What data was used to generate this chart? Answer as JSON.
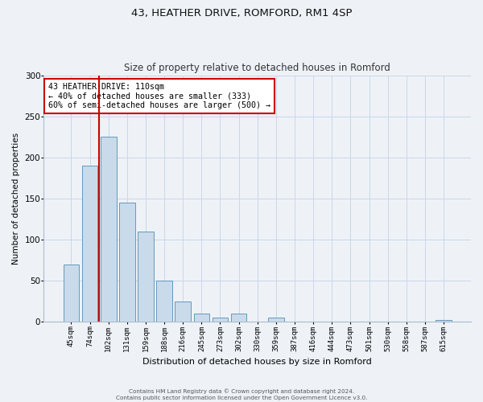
{
  "title1": "43, HEATHER DRIVE, ROMFORD, RM1 4SP",
  "title2": "Size of property relative to detached houses in Romford",
  "xlabel": "Distribution of detached houses by size in Romford",
  "ylabel": "Number of detached properties",
  "bin_labels": [
    "45sqm",
    "74sqm",
    "102sqm",
    "131sqm",
    "159sqm",
    "188sqm",
    "216sqm",
    "245sqm",
    "273sqm",
    "302sqm",
    "330sqm",
    "359sqm",
    "387sqm",
    "416sqm",
    "444sqm",
    "473sqm",
    "501sqm",
    "530sqm",
    "558sqm",
    "587sqm",
    "615sqm"
  ],
  "bar_values": [
    70,
    190,
    225,
    145,
    110,
    50,
    25,
    10,
    5,
    10,
    0,
    5,
    0,
    0,
    0,
    0,
    0,
    0,
    0,
    0,
    2
  ],
  "bar_color": "#c9daea",
  "bar_edge_color": "#6699bb",
  "vline_color": "#cc0000",
  "vline_x": 1.5,
  "annotation_line1": "43 HEATHER DRIVE: 110sqm",
  "annotation_line2": "← 40% of detached houses are smaller (333)",
  "annotation_line3": "60% of semi-detached houses are larger (500) →",
  "annotation_box_color": "#cc0000",
  "annotation_bg": "#ffffff",
  "ylim": [
    0,
    300
  ],
  "yticks": [
    0,
    50,
    100,
    150,
    200,
    250,
    300
  ],
  "footer1": "Contains HM Land Registry data © Crown copyright and database right 2024.",
  "footer2": "Contains public sector information licensed under the Open Government Licence v3.0.",
  "bg_color": "#eef2f7",
  "plot_bg_color": "#eef2f7",
  "grid_color": "#c8d8e8",
  "title1_fontsize": 9.5,
  "title2_fontsize": 8.5,
  "xlabel_fontsize": 8,
  "ylabel_fontsize": 7.5,
  "xtick_fontsize": 6.5,
  "ytick_fontsize": 7.5,
  "annot_fontsize": 7.2,
  "footer_fontsize": 5.2
}
